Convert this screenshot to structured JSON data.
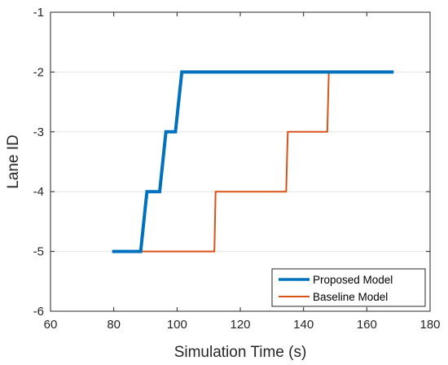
{
  "chart_data": {
    "type": "line",
    "title": "",
    "xlabel": "Simulation Time (s)",
    "ylabel": "Lane ID",
    "xlim": [
      60,
      180
    ],
    "ylim": [
      -6,
      -1
    ],
    "xticks": [
      60,
      80,
      100,
      120,
      140,
      160,
      180
    ],
    "yticks": [
      -1,
      -2,
      -3,
      -4,
      -5,
      -6
    ],
    "xtick_labels": [
      "60",
      "80",
      "100",
      "120",
      "140",
      "160",
      "180"
    ],
    "ytick_labels": [
      "-1",
      "-2",
      "-3",
      "-4",
      "-5",
      "-6"
    ],
    "grid": true,
    "legend_position": "bottom-right",
    "series": [
      {
        "name": "Proposed Model",
        "color": "#0072BD",
        "x": [
          79.5,
          88.5,
          90.5,
          94.5,
          96.5,
          99.5,
          101.5,
          168.5
        ],
        "y": [
          -5,
          -5,
          -4,
          -4,
          -3,
          -3,
          -2,
          -2
        ]
      },
      {
        "name": "Baseline Model",
        "color": "#D95319",
        "x": [
          79.5,
          111.8,
          112.2,
          134.5,
          135,
          147.5,
          148,
          166
        ],
        "y": [
          -5,
          -5,
          -4,
          -4,
          -3,
          -3,
          -2,
          -2
        ]
      }
    ]
  }
}
